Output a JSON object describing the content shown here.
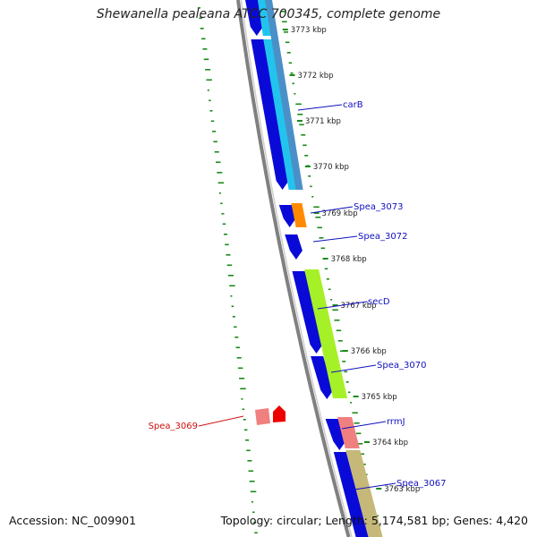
{
  "header": {
    "title": "Shewanella pealeana ATCC 700345, complete genome"
  },
  "footer": {
    "accession": "Accession: NC_009901",
    "topology": "Topology: circular; Length: 5,174,581 bp; Genes: 4,420"
  },
  "ticks": [
    {
      "label": "3773 kbp"
    },
    {
      "label": "3772 kbp"
    },
    {
      "label": "3771 kbp"
    },
    {
      "label": "3770 kbp"
    },
    {
      "label": "3769 kbp"
    },
    {
      "label": "3768 kbp"
    },
    {
      "label": "3767 kbp"
    },
    {
      "label": "3766 kbp"
    },
    {
      "label": "3765 kbp"
    },
    {
      "label": "3764 kbp"
    },
    {
      "label": "3763 kbp"
    }
  ],
  "gene_labels": [
    {
      "text": "carB",
      "color": "#1010c0"
    },
    {
      "text": "Spea_3073",
      "color": "#1010c0"
    },
    {
      "text": "Spea_3072",
      "color": "#1010c0"
    },
    {
      "text": "secD",
      "color": "#1010c0"
    },
    {
      "text": "Spea_3070",
      "color": "#1010c0"
    },
    {
      "text": "rrmJ",
      "color": "#1010c0"
    },
    {
      "text": "Spea_3069",
      "color": "#d01010"
    },
    {
      "text": "Spea_3067",
      "color": "#1010c0"
    }
  ],
  "colors": {
    "backbone": "#808080",
    "strand": "#0a0ad8",
    "cyan": "#22c4ee",
    "steel": "#4a90c8",
    "orange": "#ff8a00",
    "lime": "#a6f028",
    "pink": "#f08080",
    "red": "#ee0000",
    "khaki": "#c6b878",
    "dots": "#1a8a1a"
  }
}
